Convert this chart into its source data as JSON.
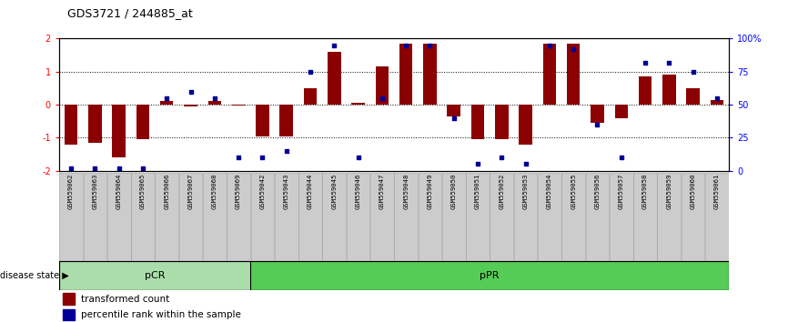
{
  "title": "GDS3721 / 244885_at",
  "samples": [
    "GSM559062",
    "GSM559063",
    "GSM559064",
    "GSM559065",
    "GSM559066",
    "GSM559067",
    "GSM559068",
    "GSM559069",
    "GSM559042",
    "GSM559043",
    "GSM559044",
    "GSM559045",
    "GSM559046",
    "GSM559047",
    "GSM559048",
    "GSM559049",
    "GSM559050",
    "GSM559051",
    "GSM559052",
    "GSM559053",
    "GSM559054",
    "GSM559055",
    "GSM559056",
    "GSM559057",
    "GSM559058",
    "GSM559059",
    "GSM559060",
    "GSM559061"
  ],
  "bar_values": [
    -1.2,
    -1.15,
    -1.6,
    -1.05,
    0.12,
    -0.05,
    0.1,
    -0.02,
    -0.95,
    -0.95,
    0.5,
    1.6,
    0.05,
    1.15,
    1.85,
    1.85,
    -0.35,
    -1.05,
    -1.05,
    -1.2,
    1.85,
    1.85,
    -0.55,
    -0.4,
    0.85,
    0.9,
    0.5,
    0.15
  ],
  "percentile_values": [
    2,
    2,
    2,
    2,
    55,
    60,
    55,
    10,
    10,
    15,
    75,
    95,
    10,
    55,
    95,
    95,
    40,
    5,
    10,
    5,
    95,
    92,
    35,
    10,
    82,
    82,
    75,
    55
  ],
  "pcr_count": 8,
  "ppr_count": 20,
  "bar_color": "#8B0000",
  "dot_color": "#000099",
  "ylim_left": [
    -2,
    2
  ],
  "yticks_left": [
    -2,
    -1,
    0,
    1,
    2
  ],
  "yticks_right": [
    0,
    25,
    50,
    75,
    100
  ],
  "pcr_color": "#aaddaa",
  "ppr_color": "#55cc55",
  "grid_color": "black",
  "grid_linestyle": ":",
  "grid_linewidth": 0.7
}
